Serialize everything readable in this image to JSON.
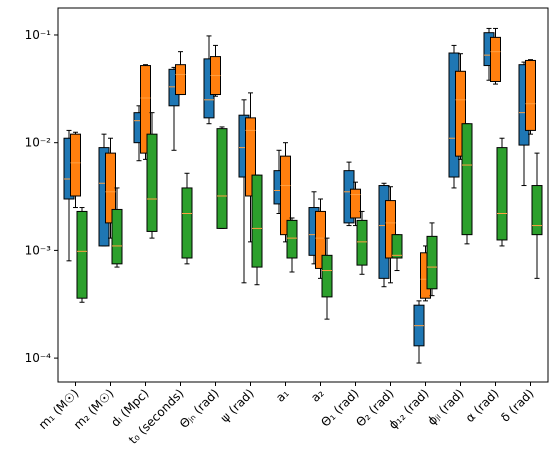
{
  "chart_data": {
    "type": "box",
    "categories": [
      "m₁ (M☉)",
      "m₂ (M☉)",
      "dₗ (Mpc)",
      "t₀ (seconds)",
      "Θⱼₙ (rad)",
      "ψ (rad)",
      "a₁",
      "a₂",
      "Θ₁ (rad)",
      "Θ₂ (rad)",
      "ϕ₁₂ (rad)",
      "ϕⱼₗ (rad)",
      "α (rad)",
      "δ (rad)"
    ],
    "log_scale": true,
    "ylim": [
      6e-05,
      0.178
    ],
    "yticks": [
      {
        "value": 0.0001,
        "label": "10⁻⁴"
      },
      {
        "value": 0.001,
        "label": "10⁻³"
      },
      {
        "value": 0.01,
        "label": "10⁻²"
      },
      {
        "value": 0.1,
        "label": "10⁻¹"
      }
    ],
    "median_color": "#ff9f40",
    "series": [
      {
        "color": "#1f77b4",
        "whisker_low": [
          0.0008,
          0.0011,
          0.0068,
          0.0085,
          0.015,
          0.0005,
          0.0022,
          0.00075,
          0.0017,
          0.00046,
          9e-05,
          0.0038,
          0.038,
          0.004
        ],
        "q1": [
          0.003,
          0.0011,
          0.01,
          0.022,
          0.017,
          0.0048,
          0.0027,
          0.0009,
          0.0018,
          0.00055,
          0.00013,
          0.0048,
          0.052,
          0.0095
        ],
        "median": [
          0.0046,
          0.0042,
          0.016,
          0.033,
          0.025,
          0.009,
          0.0036,
          0.0014,
          0.0035,
          0.0017,
          0.0002,
          0.011,
          0.065,
          0.019
        ],
        "q3": [
          0.011,
          0.009,
          0.019,
          0.048,
          0.06,
          0.018,
          0.0055,
          0.0025,
          0.0055,
          0.004,
          0.00031,
          0.068,
          0.105,
          0.053
        ],
        "whisker_high": [
          0.013,
          0.012,
          0.022,
          0.05,
          0.098,
          0.025,
          0.0085,
          0.0035,
          0.0066,
          0.0042,
          0.00034,
          0.08,
          0.115,
          0.056
        ]
      },
      {
        "color": "#ff7f0e",
        "whisker_low": [
          0.0025,
          0.0013,
          0.007,
          0.028,
          0.027,
          0.0012,
          0.0012,
          0.00055,
          0.0017,
          0.0005,
          0.00034,
          0.007,
          0.035,
          0.012
        ],
        "q1": [
          0.0032,
          0.0018,
          0.008,
          0.028,
          0.028,
          0.0032,
          0.0014,
          0.00068,
          0.002,
          0.00085,
          0.00036,
          0.0075,
          0.037,
          0.013
        ],
        "median": [
          0.0065,
          0.0035,
          0.026,
          0.043,
          0.042,
          0.013,
          0.004,
          0.0013,
          0.0033,
          0.0018,
          0.00054,
          0.025,
          0.07,
          0.023
        ],
        "q3": [
          0.012,
          0.008,
          0.052,
          0.053,
          0.063,
          0.017,
          0.0075,
          0.0023,
          0.0037,
          0.0029,
          0.00095,
          0.046,
          0.095,
          0.058
        ],
        "whisker_high": [
          0.0125,
          0.011,
          0.053,
          0.07,
          0.08,
          0.029,
          0.01,
          0.003,
          0.0043,
          0.0039,
          0.0011,
          0.067,
          0.115,
          0.059
        ]
      },
      {
        "color": "#2ca02c",
        "whisker_low": [
          0.00033,
          0.0007,
          0.0013,
          0.00075,
          0.0016,
          0.00048,
          0.00063,
          0.00023,
          0.0006,
          0.00065,
          0.00038,
          0.00115,
          0.0011,
          0.00055
        ],
        "q1": [
          0.00036,
          0.00075,
          0.0015,
          0.00085,
          0.0016,
          0.0007,
          0.00085,
          0.00037,
          0.00073,
          0.00085,
          0.00044,
          0.0014,
          0.00125,
          0.0014
        ],
        "median": [
          0.00098,
          0.0011,
          0.003,
          0.0022,
          0.0032,
          0.0016,
          0.0013,
          0.00065,
          0.0012,
          0.0009,
          0.0007,
          0.0062,
          0.0022,
          0.0017
        ],
        "q3": [
          0.0023,
          0.0024,
          0.012,
          0.0038,
          0.0135,
          0.005,
          0.0019,
          0.0009,
          0.0019,
          0.0014,
          0.00135,
          0.015,
          0.009,
          0.004
        ],
        "whisker_high": [
          0.0025,
          0.0038,
          0.019,
          0.0052,
          0.014,
          0.005,
          0.002,
          0.0013,
          0.0023,
          0.0014,
          0.0018,
          0.015,
          0.011,
          0.008
        ]
      }
    ]
  }
}
